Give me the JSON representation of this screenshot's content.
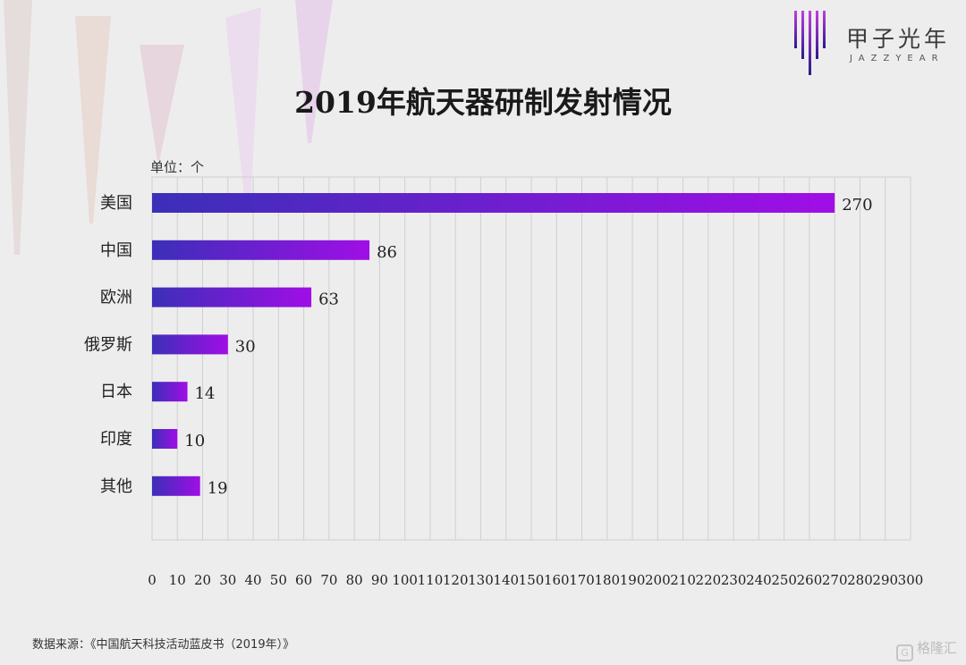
{
  "header": {
    "title": "2019年航天器研制发射情况",
    "unit": "单位：个"
  },
  "logo": {
    "cn": "甲子光年",
    "en": "JAZZYEAR"
  },
  "footer": {
    "source": "数据来源：《中国航天科技活动蓝皮书（2019年）》",
    "watermark": "格隆汇"
  },
  "colors": {
    "background": "#eeeded",
    "bar_start": "#3b2fb8",
    "bar_end": "#a00ee6",
    "gridline": "#cfcfcf"
  },
  "chart_data": {
    "type": "bar",
    "orientation": "horizontal",
    "categories": [
      "美国",
      "中国",
      "欧洲",
      "俄罗斯",
      "日本",
      "印度",
      "其他"
    ],
    "values": [
      270,
      86,
      63,
      30,
      14,
      10,
      19
    ],
    "xlim": [
      0,
      300
    ],
    "xticks": [
      0,
      10,
      20,
      30,
      40,
      50,
      60,
      70,
      80,
      90,
      100,
      110,
      120,
      130,
      140,
      150,
      160,
      170,
      180,
      190,
      200,
      210,
      220,
      230,
      240,
      250,
      260,
      270,
      280,
      290,
      300
    ],
    "grid": true,
    "legend": "none",
    "data_labels": true
  }
}
